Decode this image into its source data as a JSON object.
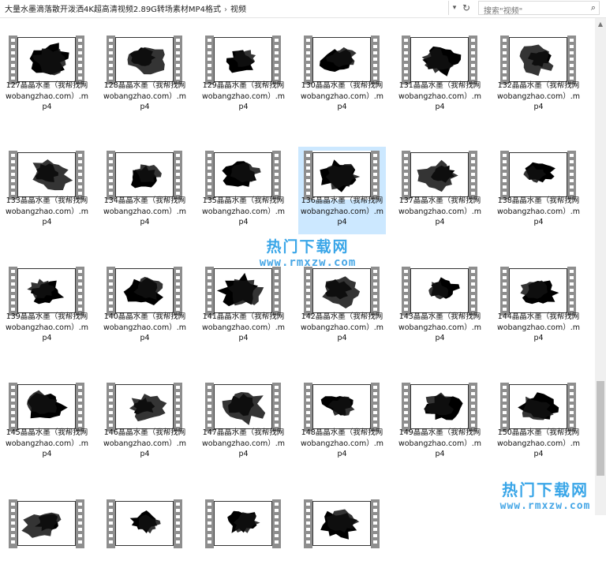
{
  "address": {
    "path": [
      "大量水墨滴落散开泼洒4K超高清视频2.89G转场素材MP4格式",
      "视频"
    ],
    "separator": "›",
    "dropdown_icon": "chevron-down-icon",
    "refresh_icon": "refresh-icon"
  },
  "search": {
    "placeholder": "搜索\"视频\"",
    "icon": "search-icon"
  },
  "files": [
    {
      "name": "127晶晶水墨（我帮找网wobangzhao.com）.mp4",
      "blot": 1
    },
    {
      "name": "128晶晶水墨（我帮找网wobangzhao.com）.mp4",
      "blot": 2
    },
    {
      "name": "129晶晶水墨（我帮找网wobangzhao.com）.mp4",
      "blot": 3
    },
    {
      "name": "130晶晶水墨（我帮找网wobangzhao.com）.mp4",
      "blot": 4
    },
    {
      "name": "131晶晶水墨（我帮找网wobangzhao.com）.mp4",
      "blot": 5
    },
    {
      "name": "132晶晶水墨（我帮找网wobangzhao.com）.mp4",
      "blot": 6
    },
    {
      "name": "133晶晶水墨（我帮找网wobangzhao.com）.mp4",
      "blot": 7
    },
    {
      "name": "134晶晶水墨（我帮找网wobangzhao.com）.mp4",
      "blot": 8
    },
    {
      "name": "135晶晶水墨（我帮找网wobangzhao.com）.mp4",
      "blot": 9
    },
    {
      "name": "136晶晶水墨（我帮找网wobangzhao.com）.mp4",
      "blot": 10,
      "selected": true
    },
    {
      "name": "137晶晶水墨（我帮找网wobangzhao.com）.mp4",
      "blot": 11
    },
    {
      "name": "138晶晶水墨（我帮找网wobangzhao.com）.mp4",
      "blot": 12
    },
    {
      "name": "139晶晶水墨（我帮找网wobangzhao.com）.mp4",
      "blot": 13
    },
    {
      "name": "140晶晶水墨（我帮找网wobangzhao.com）.mp4",
      "blot": 14
    },
    {
      "name": "141晶晶水墨（我帮找网wobangzhao.com）.mp4",
      "blot": 15
    },
    {
      "name": "142晶晶水墨（我帮找网wobangzhao.com）.mp4",
      "blot": 16
    },
    {
      "name": "143晶晶水墨（我帮找网wobangzhao.com）.mp4",
      "blot": 17
    },
    {
      "name": "144晶晶水墨（我帮找网wobangzhao.com）.mp4",
      "blot": 18
    },
    {
      "name": "145晶晶水墨（我帮找网wobangzhao.com）.mp4",
      "blot": 19
    },
    {
      "name": "146晶晶水墨（我帮找网wobangzhao.com）.mp4",
      "blot": 20
    },
    {
      "name": "147晶晶水墨（我帮找网wobangzhao.com）.mp4",
      "blot": 21
    },
    {
      "name": "148晶晶水墨（我帮找网wobangzhao.com）.mp4",
      "blot": 22
    },
    {
      "name": "149晶晶水墨（我帮找网wobangzhao.com）.mp4",
      "blot": 23
    },
    {
      "name": "150晶晶水墨（我帮找网wobangzhao.com）.mp4",
      "blot": 24
    },
    {
      "name": "",
      "blot": 25
    },
    {
      "name": "",
      "blot": 26
    },
    {
      "name": "",
      "blot": 27
    },
    {
      "name": "",
      "blot": 28
    }
  ],
  "watermark": {
    "cn": "热门下载网",
    "en": "www.rmxzw.com"
  },
  "colors": {
    "selection": "#cce8ff",
    "watermark": "#3aa6e8",
    "filmstrip": "#8e8e8e"
  }
}
